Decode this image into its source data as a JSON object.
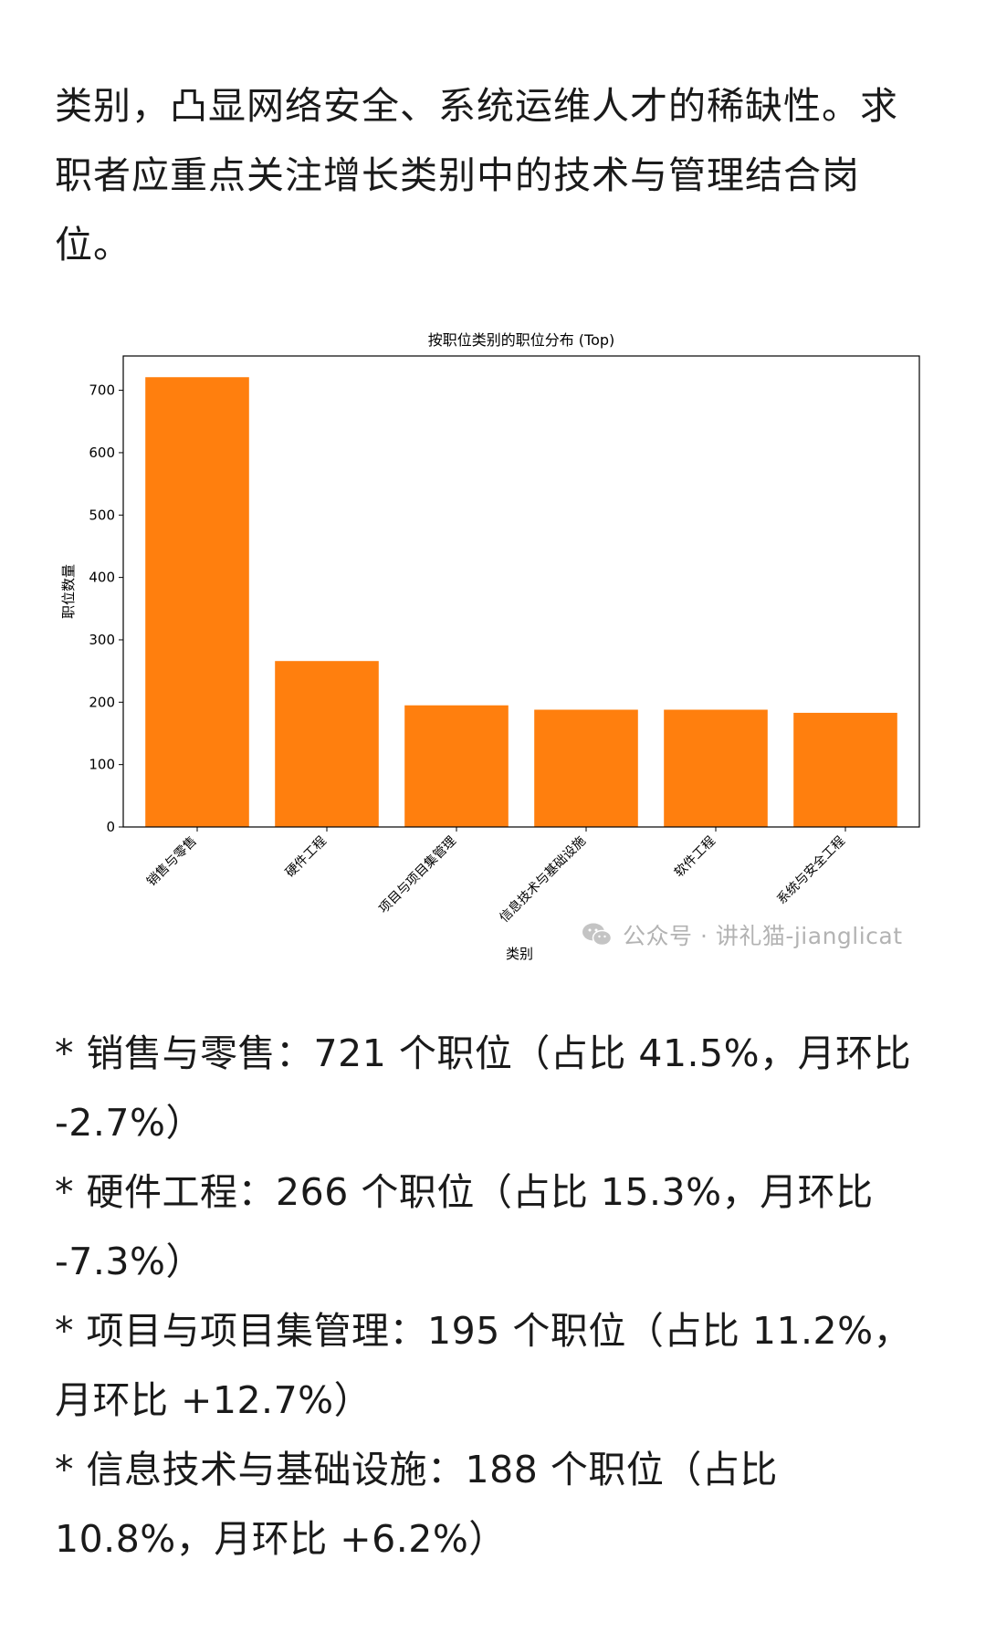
{
  "intro": "类别，凸显网络安全、系统运维人才的稀缺性。求职者应重点关注增长类别中的技术与管理结合岗位。",
  "chart_data": {
    "type": "bar",
    "title": "按职位类别的职位分布 (Top)",
    "xlabel": "类别",
    "ylabel": "职位数量",
    "categories": [
      "销售与零售",
      "硬件工程",
      "项目与项目集管理",
      "信息技术与基础设施",
      "软件工程",
      "系统与安全工程"
    ],
    "values": [
      721,
      266,
      195,
      188,
      188,
      183
    ],
    "yticks": [
      0,
      100,
      200,
      300,
      400,
      500,
      600,
      700
    ],
    "ylim": [
      0,
      755
    ],
    "color": "#ff7f0e",
    "grid": false,
    "legend": "none"
  },
  "watermark": {
    "icon": "wechat-icon",
    "text": "公众号 · 讲礼猫-jianglicat"
  },
  "items": [
    "* 销售与零售：721 个职位（占比 41.5%，月环比 -2.7%）",
    "* 硬件工程：266 个职位（占比 15.3%，月环比 -7.3%）",
    "* 项目与项目集管理：195 个职位（占比 11.2%，月环比 +12.7%）",
    "* 信息技术与基础设施：188 个职位（占比 10.8%，月环比 +6.2%）"
  ]
}
